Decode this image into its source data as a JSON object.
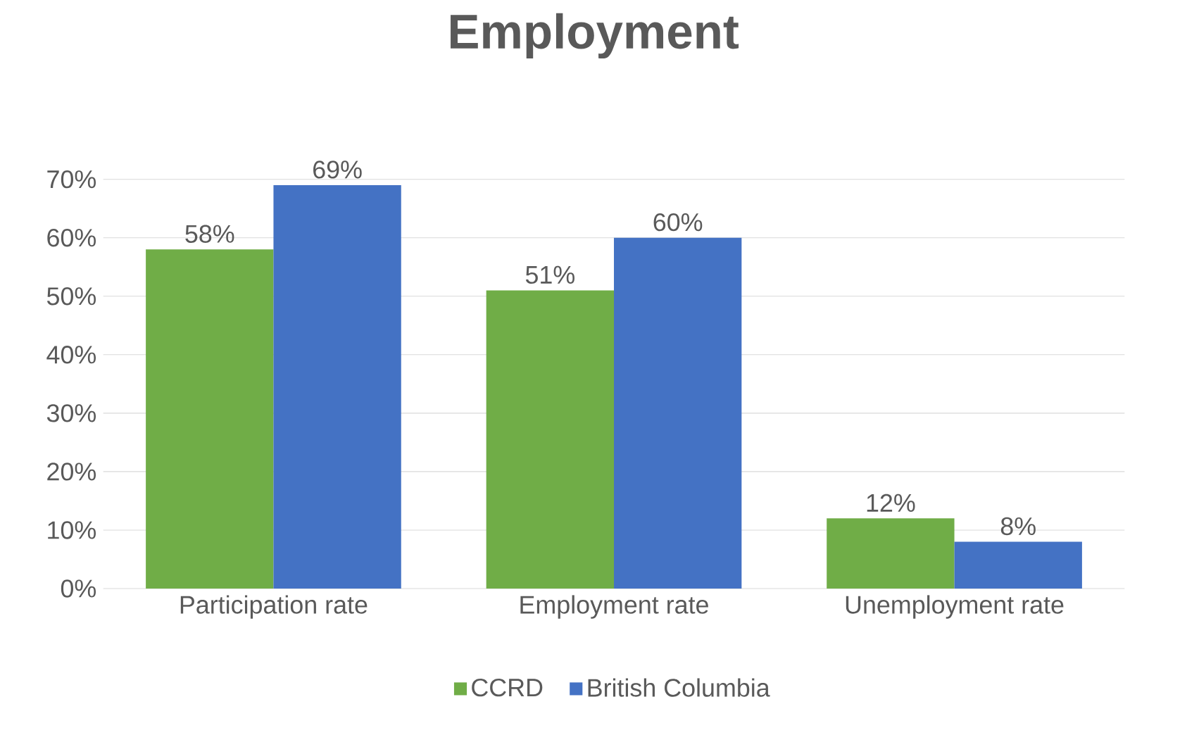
{
  "chart_data": {
    "type": "bar",
    "title": "Employment",
    "categories": [
      "Participation rate",
      "Employment rate",
      "Unemployment rate"
    ],
    "series": [
      {
        "name": "CCRD",
        "color": "#70ad47",
        "values": [
          58,
          51,
          12
        ],
        "value_labels": [
          "58%",
          "51%",
          "12%"
        ]
      },
      {
        "name": "British Columbia",
        "color": "#4472c4",
        "values": [
          69,
          60,
          8
        ],
        "value_labels": [
          "69%",
          "60%",
          "8%"
        ]
      }
    ],
    "ylim": [
      0,
      70
    ],
    "yticks": [
      {
        "value": 0,
        "label": "0%"
      },
      {
        "value": 10,
        "label": "10%"
      },
      {
        "value": 20,
        "label": "20%"
      },
      {
        "value": 30,
        "label": "30%"
      },
      {
        "value": 40,
        "label": "40%"
      },
      {
        "value": 50,
        "label": "50%"
      },
      {
        "value": 60,
        "label": "60%"
      },
      {
        "value": 70,
        "label": "70%"
      }
    ],
    "grid": "y",
    "legend": "bottom"
  }
}
